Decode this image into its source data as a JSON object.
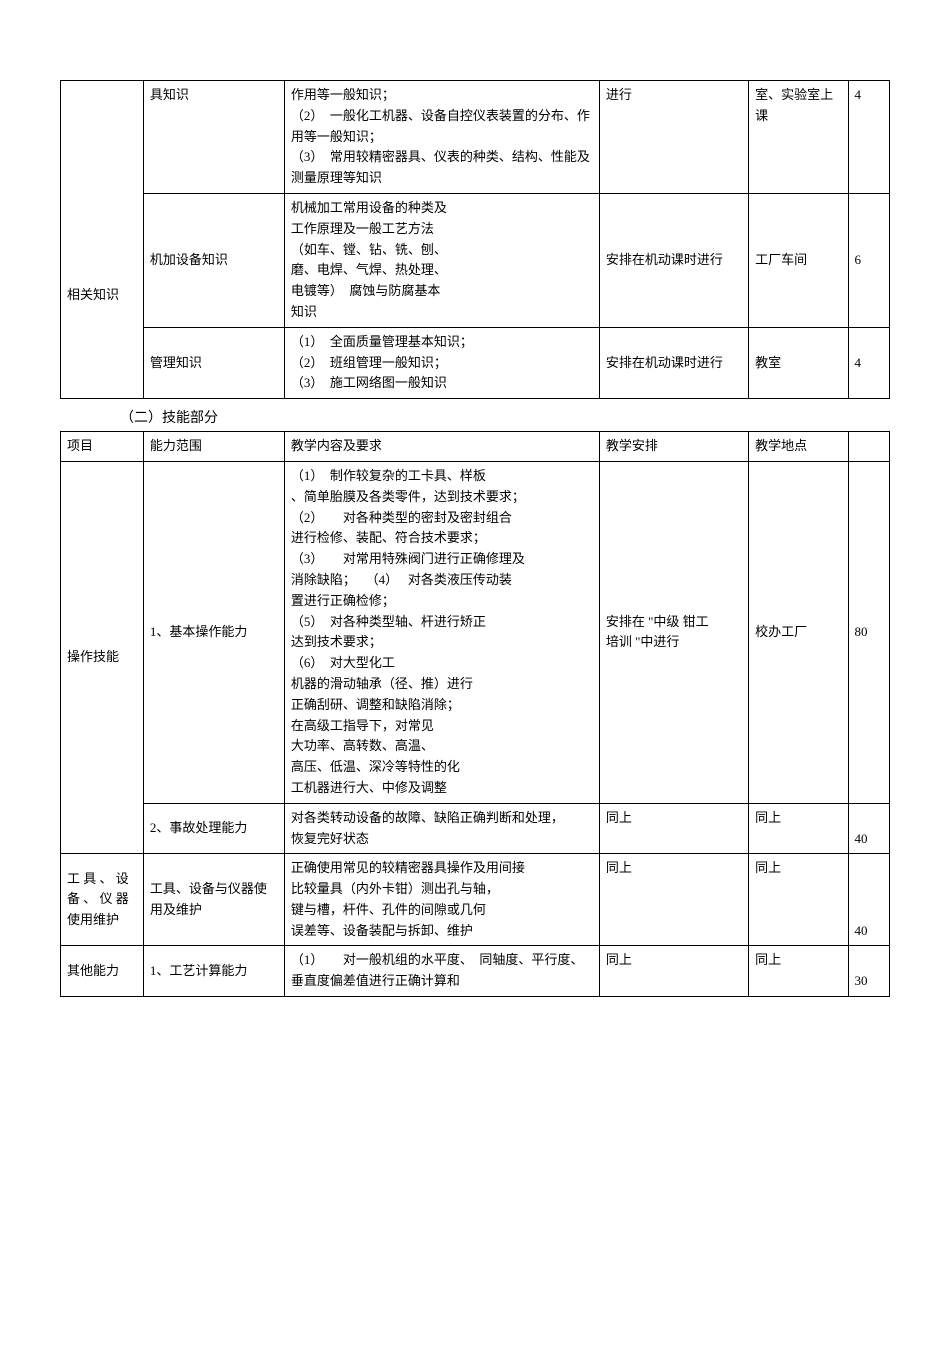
{
  "table1": {
    "rows": [
      {
        "c1": "",
        "c2": "具知识",
        "c3": "作用等一般知识；\n（2）　一般化工机器、设备自控仪表装置的分布、作用等一般知识；\n（3）　常用较精密器具、仪表的种类、结构、性能及测量原理等知识",
        "c4": "进行",
        "c5": "室、实验室上课",
        "c6": "4"
      },
      {
        "c1": "相关知识",
        "c2": "机加设备知识",
        "c3": "机械加工常用设备的种类及\n工作原理及一般工艺方法\n（如车、镗、钻、铣、刨、\n磨、电焊、气焊、热处理、\n电镀等）　腐蚀与防腐基本\n知识",
        "c4": "安排在机动课时进行",
        "c5": "工厂车间",
        "c6": "6"
      },
      {
        "c2": "管理知识",
        "c3": "（1）　全面质量管理基本知识；\n（2）　班组管理一般知识；\n（3）　施工网络图一般知识",
        "c4": "安排在机动课时进行",
        "c5": "教室",
        "c6": "4"
      }
    ]
  },
  "section2_title": "（二）技能部分",
  "table2": {
    "header": {
      "c1": "项目",
      "c2": "能力范围",
      "c3": "教学内容及要求",
      "c4": "教学安排",
      "c5": "教学地点",
      "c6": ""
    },
    "rows": [
      {
        "c1": "操作技能",
        "c2": "1、基本操作能力",
        "c3": "（1）　制作较复杂的工卡具、样板\n、简单胎膜及各类零件，达到技术要求；\n（2）　　对各种类型的密封及密封组合\n进行检修、装配、符合技术要求；\n（3）　　对常用特殊阀门进行正确修理及\n消除缺陷；　 （4）　 对各类液压传动装\n置进行正确检修；\n（5）　对各种类型轴、杆进行矫正\n达到技术要求；\n（6）　对大型化工\n机器的滑动轴承（径、推）进行\n正确刮研、调整和缺陷消除；\n在高级工指导下，对常见\n大功率、高转数、高温、\n高压、低温、深冷等特性的化\n工机器进行大、中修及调整",
        "c4": "安排在 \"中级 钳工\n培训 \"中进行",
        "c5": "校办工厂",
        "c6": "80"
      },
      {
        "c2": "2、事故处理能力",
        "c3": "对各类转动设备的故障、缺陷正确判断和处理，\n恢复完好状态",
        "c4": "同上",
        "c5": "同上",
        "c6": "40"
      },
      {
        "c1": "工 具 、 设 备 、 仪 器 使用维护",
        "c2": "工具、设备与仪器使用及维护",
        "c3": "正确使用常见的较精密器具操作及用间接\n比较量具（内外卡钳）测出孔与轴，\n键与槽，杆件、孔件的间隙或几何\n误差等、设备装配与拆卸、维护",
        "c4": "同上",
        "c5": "同上",
        "c6": "40"
      },
      {
        "c1": "其他能力",
        "c2": "1、工艺计算能力",
        "c3": "（1）　　对一般机组的水平度、　同轴度、平行度、垂直度偏差值进行正确计算和",
        "c4": "同上",
        "c5": "同上",
        "c6": "30"
      }
    ]
  }
}
